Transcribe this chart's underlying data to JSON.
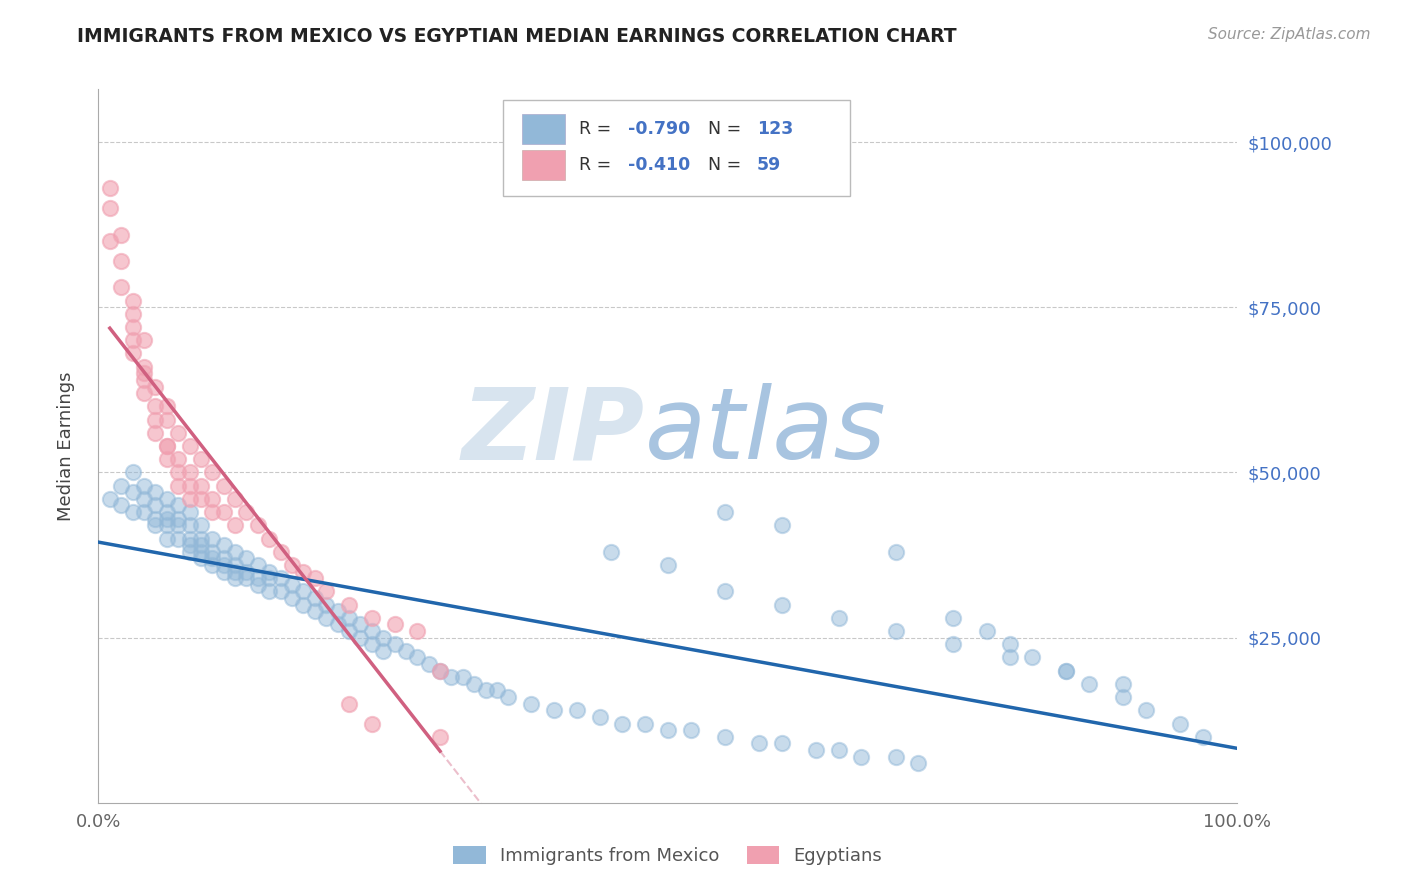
{
  "title": "IMMIGRANTS FROM MEXICO VS EGYPTIAN MEDIAN EARNINGS CORRELATION CHART",
  "source_text": "Source: ZipAtlas.com",
  "ylabel": "Median Earnings",
  "legend_r1": "-0.790",
  "legend_n1": "123",
  "legend_r2": "-0.410",
  "legend_n2": "59",
  "legend_label1": "Immigrants from Mexico",
  "legend_label2": "Egyptians",
  "ytick_labels": [
    "$25,000",
    "$50,000",
    "$75,000",
    "$100,000"
  ],
  "ytick_values": [
    25000,
    50000,
    75000,
    100000
  ],
  "ylim": [
    0,
    108000
  ],
  "xlim": [
    0,
    1.0
  ],
  "blue_color": "#92b8d8",
  "pink_color": "#f0a0b0",
  "trend_blue": "#2166ac",
  "trend_pink": "#d06080",
  "axis_label_color": "#4472c4",
  "title_color": "#222222",
  "background_color": "#ffffff",
  "mexico_x": [
    0.01,
    0.02,
    0.02,
    0.03,
    0.03,
    0.03,
    0.04,
    0.04,
    0.04,
    0.05,
    0.05,
    0.05,
    0.05,
    0.06,
    0.06,
    0.06,
    0.06,
    0.06,
    0.07,
    0.07,
    0.07,
    0.07,
    0.08,
    0.08,
    0.08,
    0.08,
    0.08,
    0.09,
    0.09,
    0.09,
    0.09,
    0.09,
    0.1,
    0.1,
    0.1,
    0.1,
    0.11,
    0.11,
    0.11,
    0.11,
    0.12,
    0.12,
    0.12,
    0.12,
    0.13,
    0.13,
    0.13,
    0.14,
    0.14,
    0.14,
    0.15,
    0.15,
    0.15,
    0.16,
    0.16,
    0.17,
    0.17,
    0.18,
    0.18,
    0.19,
    0.19,
    0.2,
    0.2,
    0.21,
    0.21,
    0.22,
    0.22,
    0.23,
    0.23,
    0.24,
    0.24,
    0.25,
    0.25,
    0.26,
    0.27,
    0.28,
    0.29,
    0.3,
    0.31,
    0.32,
    0.33,
    0.34,
    0.35,
    0.36,
    0.38,
    0.4,
    0.42,
    0.44,
    0.46,
    0.48,
    0.5,
    0.52,
    0.55,
    0.58,
    0.6,
    0.63,
    0.65,
    0.67,
    0.7,
    0.72,
    0.75,
    0.78,
    0.8,
    0.82,
    0.85,
    0.87,
    0.9,
    0.92,
    0.95,
    0.97,
    0.45,
    0.5,
    0.55,
    0.6,
    0.65,
    0.7,
    0.75,
    0.8,
    0.85,
    0.9,
    0.55,
    0.6,
    0.7
  ],
  "mexico_y": [
    46000,
    48000,
    45000,
    50000,
    47000,
    44000,
    48000,
    46000,
    44000,
    47000,
    45000,
    43000,
    42000,
    46000,
    44000,
    43000,
    42000,
    40000,
    45000,
    43000,
    42000,
    40000,
    44000,
    42000,
    40000,
    39000,
    38000,
    42000,
    40000,
    39000,
    38000,
    37000,
    40000,
    38000,
    37000,
    36000,
    39000,
    37000,
    36000,
    35000,
    38000,
    36000,
    35000,
    34000,
    37000,
    35000,
    34000,
    36000,
    34000,
    33000,
    35000,
    34000,
    32000,
    34000,
    32000,
    33000,
    31000,
    32000,
    30000,
    31000,
    29000,
    30000,
    28000,
    29000,
    27000,
    28000,
    26000,
    27000,
    25000,
    26000,
    24000,
    25000,
    23000,
    24000,
    23000,
    22000,
    21000,
    20000,
    19000,
    19000,
    18000,
    17000,
    17000,
    16000,
    15000,
    14000,
    14000,
    13000,
    12000,
    12000,
    11000,
    11000,
    10000,
    9000,
    9000,
    8000,
    8000,
    7000,
    7000,
    6000,
    28000,
    26000,
    24000,
    22000,
    20000,
    18000,
    16000,
    14000,
    12000,
    10000,
    38000,
    36000,
    32000,
    30000,
    28000,
    26000,
    24000,
    22000,
    20000,
    18000,
    44000,
    42000,
    38000
  ],
  "egypt_x": [
    0.01,
    0.01,
    0.01,
    0.02,
    0.02,
    0.02,
    0.03,
    0.03,
    0.03,
    0.03,
    0.04,
    0.04,
    0.04,
    0.04,
    0.05,
    0.05,
    0.05,
    0.06,
    0.06,
    0.06,
    0.06,
    0.07,
    0.07,
    0.07,
    0.08,
    0.08,
    0.08,
    0.09,
    0.09,
    0.1,
    0.1,
    0.11,
    0.11,
    0.12,
    0.12,
    0.13,
    0.14,
    0.15,
    0.16,
    0.17,
    0.18,
    0.19,
    0.2,
    0.22,
    0.24,
    0.26,
    0.28,
    0.3,
    0.03,
    0.04,
    0.05,
    0.06,
    0.07,
    0.08,
    0.09,
    0.1,
    0.22,
    0.24,
    0.3
  ],
  "egypt_y": [
    90000,
    85000,
    93000,
    82000,
    78000,
    86000,
    74000,
    70000,
    76000,
    68000,
    66000,
    62000,
    70000,
    64000,
    60000,
    56000,
    63000,
    58000,
    54000,
    60000,
    52000,
    56000,
    52000,
    48000,
    54000,
    50000,
    46000,
    52000,
    48000,
    50000,
    46000,
    48000,
    44000,
    46000,
    42000,
    44000,
    42000,
    40000,
    38000,
    36000,
    35000,
    34000,
    32000,
    30000,
    28000,
    27000,
    26000,
    20000,
    72000,
    65000,
    58000,
    54000,
    50000,
    48000,
    46000,
    44000,
    15000,
    12000,
    10000
  ]
}
